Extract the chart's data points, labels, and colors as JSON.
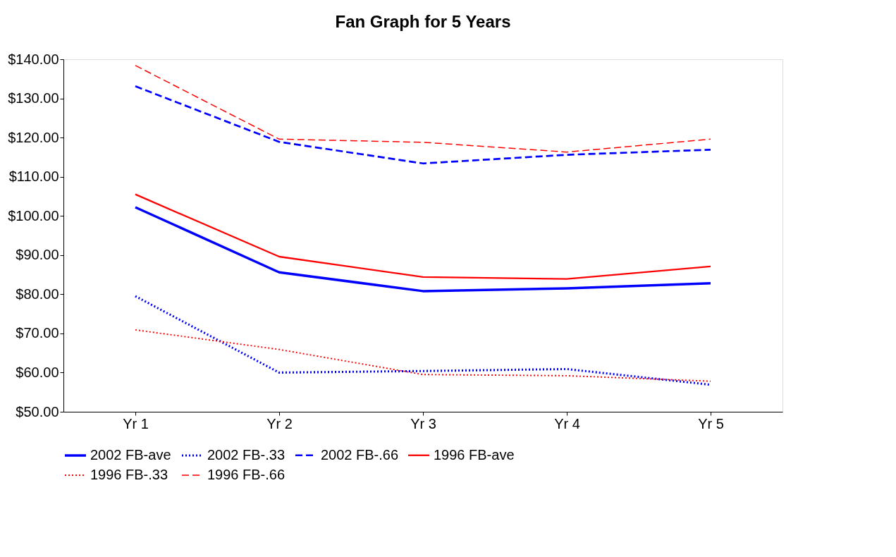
{
  "chart_data": {
    "type": "line",
    "title": "Fan Graph for 5 Years",
    "categories": [
      "Yr 1",
      "Yr 2",
      "Yr 3",
      "Yr 4",
      "Yr 5"
    ],
    "series": [
      {
        "name": "2002 FB-ave",
        "color": "#0000ff",
        "line_style": "solid",
        "values": [
          102.2,
          85.6,
          80.8,
          81.5,
          82.8
        ]
      },
      {
        "name": "2002 FB-.33",
        "color": "#0000ff",
        "line_style": "dotted",
        "values": [
          79.5,
          60.0,
          60.4,
          60.9,
          56.9
        ]
      },
      {
        "name": "2002 FB-.66",
        "color": "#0000ff",
        "line_style": "dashed",
        "values": [
          133.1,
          118.9,
          113.4,
          115.6,
          116.9
        ]
      },
      {
        "name": "1996 FB-ave",
        "color": "#ff0000",
        "line_style": "solid",
        "values": [
          105.5,
          89.6,
          84.4,
          83.9,
          87.1
        ]
      },
      {
        "name": "1996 FB-.33",
        "color": "#ff0000",
        "line_style": "dotted",
        "values": [
          70.9,
          65.9,
          59.5,
          59.2,
          57.8
        ]
      },
      {
        "name": "1996 FB-.66",
        "color": "#ff0000",
        "line_style": "dashed",
        "values": [
          138.4,
          119.6,
          118.8,
          116.3,
          119.6
        ]
      }
    ],
    "ylim": [
      50,
      140
    ],
    "yticks": [
      {
        "value": 50,
        "label": "$50.00"
      },
      {
        "value": 60,
        "label": "$60.00"
      },
      {
        "value": 70,
        "label": "$70.00"
      },
      {
        "value": 80,
        "label": "$80.00"
      },
      {
        "value": 90,
        "label": "$90.00"
      },
      {
        "value": 100,
        "label": "$100.00"
      },
      {
        "value": 110,
        "label": "$110.00"
      },
      {
        "value": 120,
        "label": "$120.00"
      },
      {
        "value": 130,
        "label": "$130.00"
      },
      {
        "value": 140,
        "label": "$140.00"
      }
    ],
    "grid": false,
    "legend": "bottom",
    "marker": "none"
  }
}
